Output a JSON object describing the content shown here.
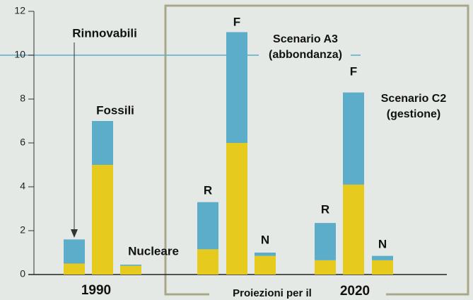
{
  "chart_data": {
    "type": "stacked_bar",
    "categories": [
      "Rinnovabili",
      "Fossili",
      "Nucleare",
      "R",
      "F",
      "N",
      "R",
      "F",
      "N"
    ],
    "series": [
      {
        "color": "#e6cb1e",
        "values": [
          0.5,
          5.0,
          0.4,
          1.15,
          6.0,
          0.85,
          0.65,
          4.1,
          0.65
        ]
      },
      {
        "color": "#5badc9",
        "values": [
          1.1,
          2.0,
          0.05,
          2.15,
          5.05,
          0.15,
          1.7,
          4.2,
          0.2
        ]
      }
    ],
    "ylim": [
      0,
      12
    ],
    "yticks": [
      0,
      2,
      4,
      6,
      8,
      10,
      12
    ],
    "reference_line": 10,
    "reference_color": "#5badc9",
    "annotations": [
      "Scenario A3",
      "(abbondanza)",
      "Scenario C2",
      "(gestione)"
    ],
    "group_labels": [
      "1990",
      "Proiezioni per il",
      "2020"
    ]
  }
}
